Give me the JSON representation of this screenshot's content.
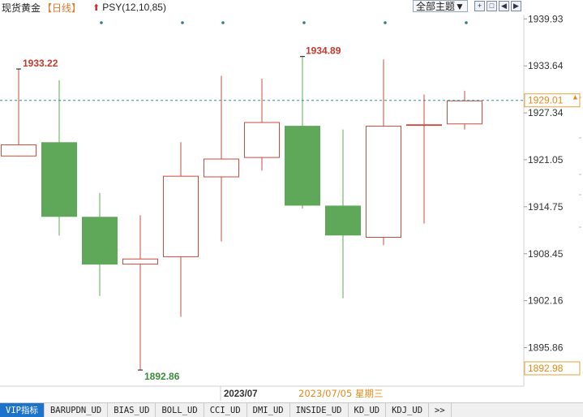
{
  "header": {
    "title": "现货黄金",
    "period": "【日线】",
    "indicator": "PSY(12,10,85)",
    "theme_button": "全部主题▼",
    "tool_icons": [
      "cross-icon",
      "zoom-fit-icon",
      "step-back-icon",
      "step-forward-icon"
    ]
  },
  "chart_data": {
    "type": "candlestick",
    "y_ticks": [
      "1939.93",
      "1933.64",
      "1927.34",
      "1921.05",
      "1914.75",
      "1908.45",
      "1902.16",
      "1895.86"
    ],
    "ylim": [
      1892.98,
      1940.4
    ],
    "current_price": "1929.01",
    "bottom_price": "1892.98",
    "x_label_month": "2023/07",
    "cursor_date": "2023/07/05 星期三",
    "up_color": "#c94b3c",
    "down_color": "#5fa85a",
    "candles": [
      {
        "open": 1921.5,
        "high": 1933.22,
        "low": 1921.5,
        "close": 1923.1
      },
      {
        "open": 1923.4,
        "high": 1931.7,
        "low": 1910.9,
        "close": 1913.4
      },
      {
        "open": 1913.4,
        "high": 1916.6,
        "low": 1902.8,
        "close": 1907.0
      },
      {
        "open": 1907.0,
        "high": 1913.6,
        "low": 1892.86,
        "close": 1907.8
      },
      {
        "open": 1908.0,
        "high": 1923.4,
        "low": 1900.0,
        "close": 1918.9
      },
      {
        "open": 1918.7,
        "high": 1932.3,
        "low": 1910.1,
        "close": 1921.2
      },
      {
        "open": 1921.3,
        "high": 1931.9,
        "low": 1919.6,
        "close": 1926.1
      },
      {
        "open": 1925.6,
        "high": 1934.89,
        "low": 1914.5,
        "close": 1914.9
      },
      {
        "open": 1914.9,
        "high": 1925.1,
        "low": 1902.5,
        "close": 1910.9
      },
      {
        "open": 1910.6,
        "high": 1934.5,
        "low": 1909.6,
        "close": 1925.6
      },
      {
        "open": 1925.6,
        "high": 1929.8,
        "low": 1912.5,
        "close": 1925.8
      },
      {
        "open": 1925.8,
        "high": 1930.3,
        "low": 1925.1,
        "close": 1929.0
      }
    ],
    "high_label": {
      "index": 7,
      "value": "1934.89"
    },
    "left_high_label": {
      "index": 0,
      "value": "1933.22"
    },
    "low_label": {
      "index": 3,
      "value": "1892.86"
    },
    "event_dots": [
      2,
      4,
      5,
      7,
      9,
      11
    ]
  },
  "tabs": [
    "VIP指标",
    "BARUPDN_UD",
    "BIAS_UD",
    "BOLL_UD",
    "CCI_UD",
    "DMI_UD",
    "INSIDE_UD",
    "KD_UD",
    "KDJ_UD",
    ">>"
  ]
}
